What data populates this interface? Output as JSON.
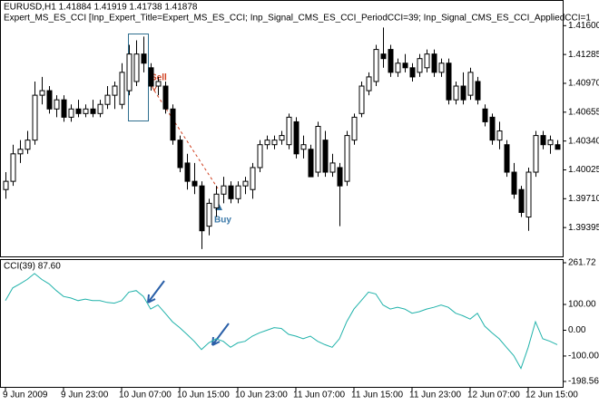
{
  "chart_data": [
    {
      "type": "candlestick",
      "title": "EURUSD,H1  1.41884 1.41919 1.41738 1.41878",
      "subtitle": "Expert_MS_ES_CCI [Inp_Expert_Title=Expert_MS_ES_CCI; Inp_Signal_CMS_ES_CCI_PeriodCCI=39; Inp_Signal_CMS_ES_CCI_AppliedCCI=1",
      "annotations": [
        "Sell",
        "Buy"
      ],
      "open": [
        1.3981,
        1.399,
        1.402,
        1.4025,
        1.4035,
        1.4084,
        1.4089,
        1.4069,
        1.4079,
        1.406,
        1.4069,
        1.4064,
        1.4069,
        1.4064,
        1.4074,
        1.4084,
        1.4074,
        1.4089,
        1.4099,
        1.4129,
        1.4114,
        1.4094,
        1.4094,
        1.4069,
        1.4035,
        1.401,
        1.399,
        1.3985,
        1.3941,
        1.3961,
        1.3976,
        1.3985,
        1.3971,
        1.3985,
        1.3981,
        1.4005,
        1.403,
        1.403,
        1.4035,
        1.403,
        1.4055,
        1.4025,
        1.4025,
        1.4,
        1.4035,
        1.4,
        1.4005,
        1.399,
        1.4035,
        1.4064,
        1.4089,
        1.4099,
        1.4129,
        1.4134,
        1.4109,
        1.4119,
        1.4114,
        1.4109,
        1.4114,
        1.4129,
        1.4109,
        1.4119,
        1.4079,
        1.4094,
        1.4084,
        1.4099,
        1.4069,
        1.406,
        1.4035,
        1.403,
        1.4,
        1.3981,
        1.3951,
        1.4,
        1.404,
        1.403,
        1.403
      ],
      "high": [
        1.4,
        1.403,
        1.4035,
        1.4045,
        1.4099,
        1.4104,
        1.4094,
        1.4084,
        1.4084,
        1.4074,
        1.4079,
        1.4074,
        1.4079,
        1.4079,
        1.4094,
        1.4099,
        1.4119,
        1.4139,
        1.4144,
        1.4148,
        1.4119,
        1.4104,
        1.4099,
        1.4074,
        1.404,
        1.402,
        1.401,
        1.399,
        1.3971,
        1.3985,
        1.3995,
        1.399,
        1.399,
        1.3995,
        1.401,
        1.4035,
        1.404,
        1.404,
        1.4045,
        1.4064,
        1.406,
        1.404,
        1.403,
        1.4055,
        1.4045,
        1.402,
        1.401,
        1.4045,
        1.4064,
        1.4099,
        1.4109,
        1.4139,
        1.4158,
        1.4139,
        1.4124,
        1.4129,
        1.4119,
        1.4129,
        1.4134,
        1.4134,
        1.4124,
        1.4124,
        1.4099,
        1.4109,
        1.4114,
        1.4104,
        1.4074,
        1.4064,
        1.4055,
        1.4035,
        1.401,
        1.3985,
        1.4005,
        1.4045,
        1.4045,
        1.404,
        1.4035
      ],
      "low": [
        1.3971,
        1.3985,
        1.401,
        1.402,
        1.403,
        1.4074,
        1.4064,
        1.406,
        1.4055,
        1.4055,
        1.406,
        1.406,
        1.406,
        1.406,
        1.4069,
        1.4069,
        1.4069,
        1.4084,
        1.4094,
        1.4109,
        1.4089,
        1.4084,
        1.4064,
        1.403,
        1.4,
        1.3981,
        1.3976,
        1.3916,
        1.3931,
        1.3951,
        1.3966,
        1.3966,
        1.3966,
        1.3976,
        1.3971,
        1.4,
        1.4025,
        1.4025,
        1.403,
        1.4025,
        1.4015,
        1.4015,
        1.3995,
        1.3995,
        1.3995,
        1.3995,
        1.3941,
        1.3985,
        1.403,
        1.406,
        1.4084,
        1.4094,
        1.4114,
        1.4104,
        1.4104,
        1.4109,
        1.4099,
        1.4104,
        1.4109,
        1.4104,
        1.4104,
        1.4074,
        1.4074,
        1.4074,
        1.4079,
        1.4074,
        1.405,
        1.403,
        1.4025,
        1.3995,
        1.3971,
        1.3951,
        1.3936,
        1.3995,
        1.4025,
        1.402,
        1.4025
      ],
      "close": [
        1.399,
        1.402,
        1.4025,
        1.4035,
        1.4084,
        1.4089,
        1.4069,
        1.4079,
        1.406,
        1.4069,
        1.4064,
        1.4069,
        1.4064,
        1.4074,
        1.4084,
        1.4094,
        1.4109,
        1.4129,
        1.4129,
        1.4119,
        1.4094,
        1.4099,
        1.4069,
        1.4035,
        1.4005,
        1.399,
        1.3985,
        1.3936,
        1.3966,
        1.3976,
        1.3985,
        1.3971,
        1.3985,
        1.399,
        1.4005,
        1.403,
        1.4035,
        1.4035,
        1.404,
        1.406,
        1.402,
        1.403,
        1.3995,
        1.405,
        1.4,
        1.401,
        1.3985,
        1.404,
        1.406,
        1.4094,
        1.4104,
        1.4134,
        1.4124,
        1.4109,
        1.4119,
        1.4114,
        1.4104,
        1.4124,
        1.4129,
        1.4109,
        1.4119,
        1.4079,
        1.4094,
        1.4079,
        1.4109,
        1.4079,
        1.4055,
        1.4035,
        1.4045,
        1.4,
        1.3976,
        1.3956,
        1.4,
        1.404,
        1.403,
        1.4035,
        1.4025
      ],
      "ylim": [
        1.3908,
        1.4188
      ],
      "yticks": [
        {
          "value": 1.416,
          "label": "1.41600"
        },
        {
          "value": 1.41285,
          "label": "1.41285"
        },
        {
          "value": 1.4097,
          "label": "1.40970"
        },
        {
          "value": 1.40655,
          "label": "1.40655"
        },
        {
          "value": 1.4034,
          "label": "1.40340"
        },
        {
          "value": 1.40025,
          "label": "1.40025"
        },
        {
          "value": 1.3971,
          "label": "1.39710"
        },
        {
          "value": 1.39395,
          "label": "1.39395"
        }
      ],
      "bull_color": "#ffffff",
      "bear_color": "#000000"
    },
    {
      "type": "line",
      "title": "CCI(39) 87.60",
      "categories": [
        "9 Jun 2009",
        null,
        null,
        null,
        null,
        null,
        null,
        null,
        "9 Jun 23:00",
        null,
        null,
        null,
        null,
        null,
        null,
        null,
        "10 Jun 07:00",
        null,
        null,
        null,
        null,
        null,
        null,
        null,
        "10 Jun 15:00",
        null,
        null,
        null,
        null,
        null,
        null,
        null,
        "10 Jun 23:00",
        null,
        null,
        null,
        null,
        null,
        null,
        null,
        "11 Jun 07:00",
        null,
        null,
        null,
        null,
        null,
        null,
        null,
        "11 Jun 15:00",
        null,
        null,
        null,
        null,
        null,
        null,
        null,
        "11 Jun 23:00",
        null,
        null,
        null,
        null,
        null,
        null,
        null,
        "12 Jun 07:00",
        null,
        null,
        null,
        null,
        null,
        null,
        null,
        "12 Jun 15:00",
        null,
        null,
        null,
        null
      ],
      "values": [
        115,
        164,
        180,
        197,
        220,
        197,
        180,
        154,
        131,
        125,
        115,
        121,
        115,
        115,
        108,
        105,
        115,
        148,
        154,
        131,
        82,
        98,
        66,
        33,
        10,
        -16,
        -43,
        -75,
        -49,
        -33,
        -43,
        -66,
        -49,
        -43,
        -23,
        -10,
        0,
        10,
        7,
        -16,
        -23,
        -33,
        -23,
        -43,
        -56,
        -66,
        -33,
        33,
        82,
        115,
        148,
        141,
        98,
        82,
        89,
        82,
        66,
        72,
        82,
        89,
        98,
        89,
        66,
        56,
        43,
        66,
        16,
        -10,
        -33,
        -66,
        -98,
        -148,
        -66,
        33,
        -33,
        -43,
        -56
      ],
      "color": "#20b2aa",
      "ylim": [
        -198.56,
        261.72
      ],
      "yticks": [
        {
          "value": 261.72,
          "label": "261.72"
        },
        {
          "value": 100,
          "label": "100.00"
        },
        {
          "value": 0,
          "label": "0.00"
        },
        {
          "value": -100,
          "label": "-100.00"
        },
        {
          "value": -198.56,
          "label": "-198.56"
        }
      ]
    }
  ]
}
